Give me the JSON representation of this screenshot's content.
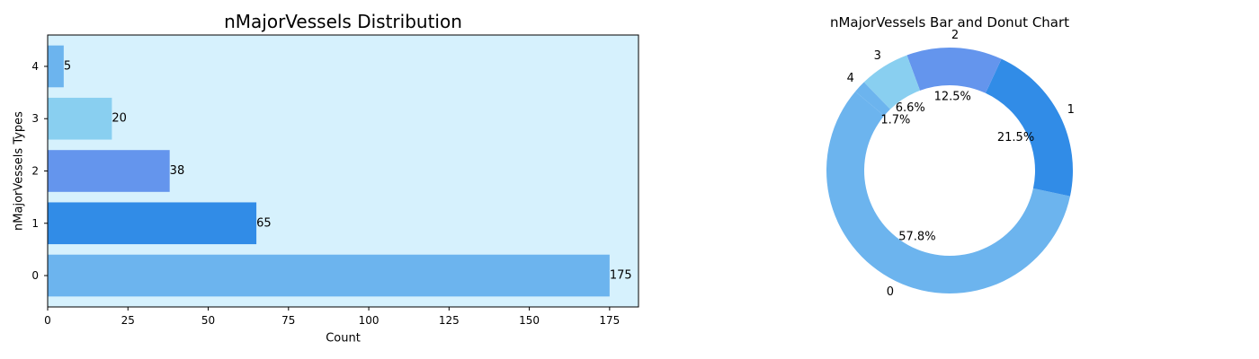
{
  "chart_data": [
    {
      "type": "bar",
      "orientation": "horizontal",
      "title": "nMajorVessels Distribution",
      "xlabel": "Count",
      "ylabel": "nMajorVessels Types",
      "categories": [
        "0",
        "1",
        "2",
        "3",
        "4"
      ],
      "values": [
        175,
        65,
        38,
        20,
        5
      ],
      "data_labels": [
        "175",
        "65",
        "38",
        "20",
        "5"
      ],
      "colors": [
        "#6cb4ee",
        "#318ce7",
        "#6495ed",
        "#89cff0",
        "#6cb4ee"
      ],
      "xlim": [
        0,
        184
      ],
      "xticks": [
        0,
        25,
        50,
        75,
        100,
        125,
        150,
        175
      ],
      "background": "#d6f1fd",
      "grid": false
    },
    {
      "type": "pie",
      "variant": "donut",
      "title": "nMajorVessels Bar and Donut Chart",
      "labels": [
        "0",
        "1",
        "2",
        "3",
        "4"
      ],
      "values": [
        175,
        65,
        38,
        20,
        5
      ],
      "percent_labels": [
        "57.8%",
        "21.5%",
        "12.5%",
        "6.6%",
        "1.7%"
      ],
      "colors": [
        "#6cb4ee",
        "#318ce7",
        "#6495ed",
        "#89cff0",
        "#6cb4ee"
      ],
      "start_angle": 140
    }
  ]
}
